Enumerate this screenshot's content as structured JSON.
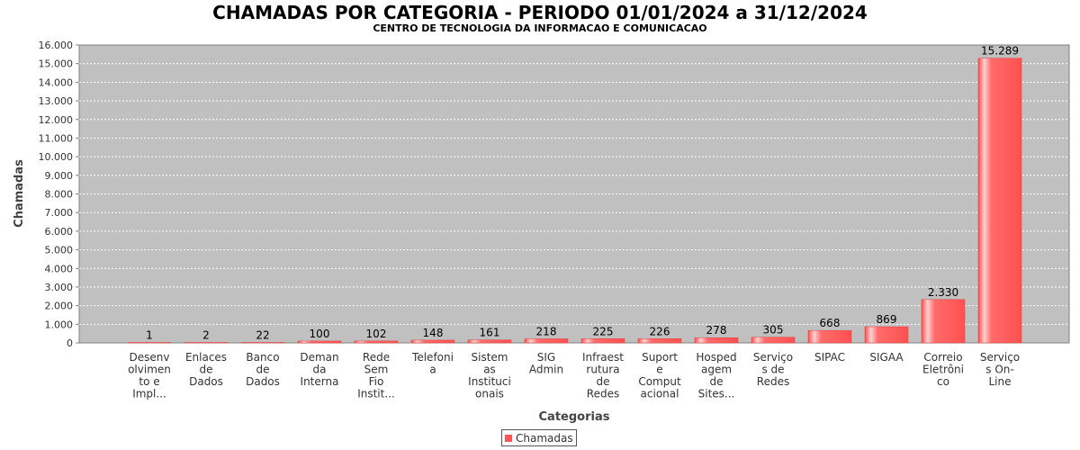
{
  "chart_data": {
    "type": "bar",
    "title": "CHAMADAS POR CATEGORIA - PERIODO 01/01/2024 a 31/12/2024",
    "subtitle": "CENTRO DE TECNOLOGIA DA INFORMACAO E COMUNICACAO",
    "xlabel": "Categorias",
    "ylabel": "Chamadas",
    "ylim": [
      0,
      16000
    ],
    "yticks": [
      0,
      1000,
      2000,
      3000,
      4000,
      5000,
      6000,
      7000,
      8000,
      9000,
      10000,
      11000,
      12000,
      13000,
      14000,
      15000,
      16000
    ],
    "ytick_labels": [
      "0",
      "1.000",
      "2.000",
      "3.000",
      "4.000",
      "5.000",
      "6.000",
      "7.000",
      "8.000",
      "9.000",
      "10.000",
      "11.000",
      "12.000",
      "13.000",
      "14.000",
      "15.000",
      "16.000"
    ],
    "grid": true,
    "legend_position": "bottom",
    "categories": [
      [
        "Desenv",
        "olvimen",
        "to e",
        "Impl..."
      ],
      [
        "Enlaces",
        "de",
        "Dados"
      ],
      [
        "Banco",
        "de",
        "Dados"
      ],
      [
        "Deman",
        "da",
        "Interna"
      ],
      [
        "Rede",
        "Sem",
        "Fio",
        "Instit..."
      ],
      [
        "Telefoni",
        "a"
      ],
      [
        "Sistem",
        "as",
        "Instituci",
        "onais"
      ],
      [
        "SIG",
        "Admin"
      ],
      [
        "Infraest",
        "rutura",
        "de",
        "Redes"
      ],
      [
        "Suport",
        "e",
        "Comput",
        "acional"
      ],
      [
        "Hosped",
        "agem",
        "de",
        "Sites..."
      ],
      [
        "Serviço",
        "s de",
        "Redes"
      ],
      [
        "SIPAC"
      ],
      [
        "SIGAA"
      ],
      [
        "Correio",
        "Eletrôni",
        "co"
      ],
      [
        "Serviço",
        "s On-",
        "Line"
      ]
    ],
    "series": [
      {
        "name": "Chamadas",
        "color": "#ff5555",
        "values": [
          1,
          2,
          22,
          100,
          102,
          148,
          161,
          218,
          225,
          226,
          278,
          305,
          668,
          869,
          2330,
          15289
        ],
        "value_labels": [
          "1",
          "2",
          "22",
          "100",
          "102",
          "148",
          "161",
          "218",
          "225",
          "226",
          "278",
          "305",
          "668",
          "869",
          "2.330",
          "15.289"
        ]
      }
    ]
  }
}
